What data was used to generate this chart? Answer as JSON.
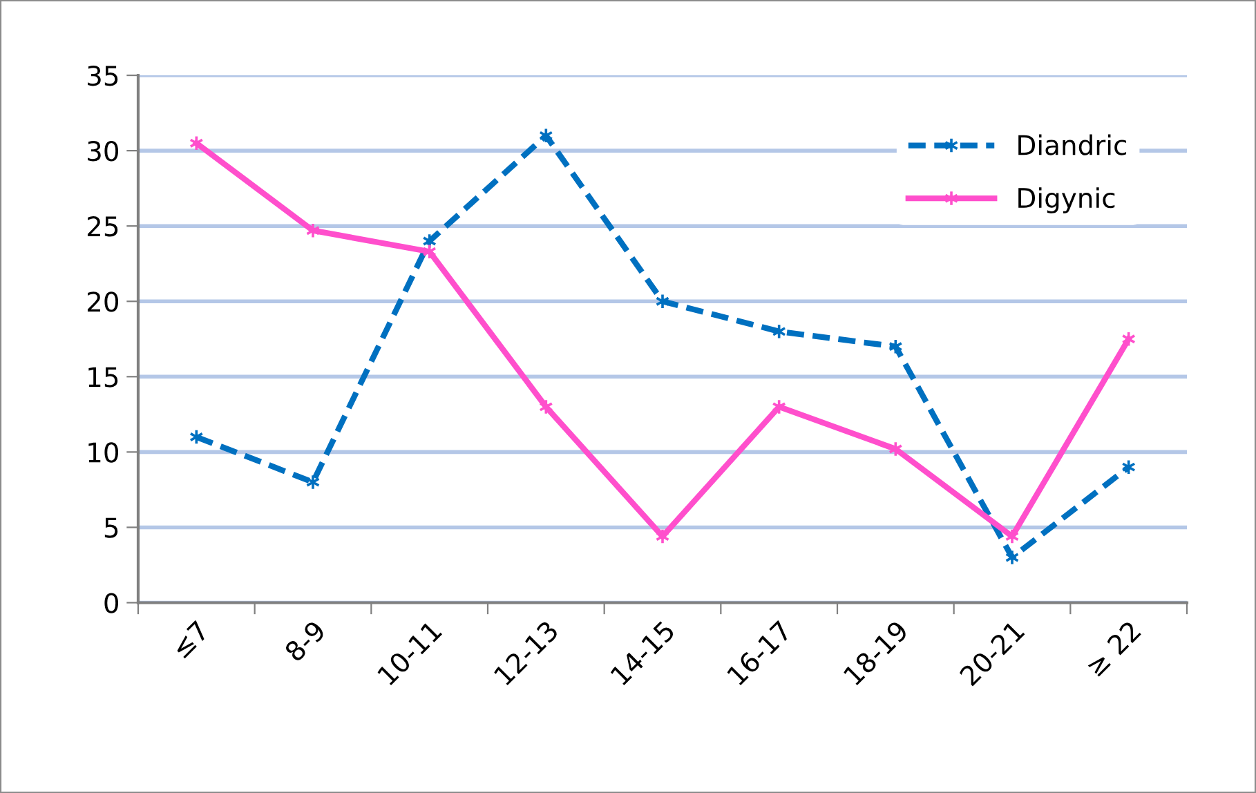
{
  "chart_data": {
    "type": "line",
    "categories": [
      "≤7",
      "8-9",
      "10-11",
      "12-13",
      "14-15",
      "16-17",
      "18-19",
      "20-21",
      "≥ 22"
    ],
    "series": [
      {
        "name": "Diandric",
        "color": "#0070c0",
        "line_style": "dashed",
        "marker": "cross",
        "values": [
          11,
          8,
          24,
          31,
          20,
          18,
          17,
          3,
          9
        ]
      },
      {
        "name": "Digynic",
        "color": "#ff4fcc",
        "line_style": "solid",
        "marker": "cross",
        "values": [
          30.5,
          24.7,
          23.3,
          13,
          4.4,
          13,
          10.2,
          4.4,
          17.5
        ]
      }
    ],
    "ylim": [
      0,
      35
    ],
    "yticks": [
      0,
      5,
      10,
      15,
      20,
      25,
      30,
      35
    ],
    "grid": "y",
    "legend": "top right"
  }
}
